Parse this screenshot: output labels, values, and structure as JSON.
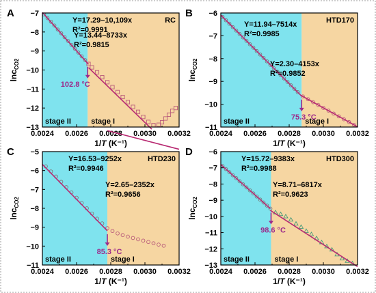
{
  "figure": {
    "colors": {
      "stage_ii_bg": "#7fe3ee",
      "stage_i_bg": "#f6d6a2",
      "fit_line": "#b82a72",
      "marker_stage_ii": "#7a7a7a",
      "marker_stage_i": "#b85a7a",
      "arrow": "#9c2a8a"
    }
  },
  "chart_data": [
    {
      "type": "scatter",
      "panel_letter": "A",
      "sample": "RC",
      "xlabel": "1/T (K⁻¹)",
      "ylabel": "lnc_CO2",
      "xlim": [
        0.0024,
        0.0032
      ],
      "ylim": [
        -13,
        -7
      ],
      "xticks": [
        "0.0024",
        "0.0026",
        "0.0028",
        "0.0030",
        "0.0032"
      ],
      "yticks": [
        "-13",
        "-12",
        "-11",
        "-10",
        "-9",
        "-8",
        "-7"
      ],
      "transition_x": 0.002665,
      "transition_temp": "102.8 °C",
      "stage_labels": [
        "stage II",
        "stage I"
      ],
      "fits": [
        {
          "equation": "Y=17.29–10,109x",
          "r2": "R²=0.9991",
          "intercept": 17.29,
          "slope": -10109,
          "x_range": [
            0.0024,
            0.00267
          ]
        },
        {
          "equation": "Y=13.44–8733x",
          "r2": "R²=0.9815",
          "intercept": 13.44,
          "slope": -8733,
          "x_range": [
            0.00267,
            0.00304
          ]
        }
      ],
      "points": [
        [
          0.00241,
          -7.08
        ],
        [
          0.00243,
          -7.27
        ],
        [
          0.00245,
          -7.46
        ],
        [
          0.00247,
          -7.66
        ],
        [
          0.00249,
          -7.87
        ],
        [
          0.00251,
          -8.07
        ],
        [
          0.00253,
          -8.27
        ],
        [
          0.00255,
          -8.47
        ],
        [
          0.00257,
          -8.68
        ],
        [
          0.00259,
          -8.88
        ],
        [
          0.00261,
          -9.08
        ],
        [
          0.00263,
          -9.28
        ],
        [
          0.00265,
          -9.48
        ],
        [
          0.00267,
          -9.68
        ],
        [
          0.00269,
          -9.86
        ],
        [
          0.00272,
          -10.12
        ],
        [
          0.00275,
          -10.38
        ],
        [
          0.00278,
          -10.64
        ],
        [
          0.00281,
          -10.9
        ],
        [
          0.00284,
          -11.16
        ],
        [
          0.00287,
          -11.42
        ],
        [
          0.0029,
          -11.69
        ],
        [
          0.00293,
          -11.94
        ],
        [
          0.00296,
          -12.2
        ],
        [
          0.00299,
          -12.47
        ],
        [
          0.00302,
          -12.73
        ],
        [
          0.00305,
          -12.9
        ],
        [
          0.00308,
          -12.88
        ],
        [
          0.0031,
          -12.75
        ],
        [
          0.00312,
          -12.55
        ],
        [
          0.00314,
          -12.35
        ],
        [
          0.00316,
          -12.15
        ],
        [
          0.00318,
          -12.0
        ]
      ]
    },
    {
      "type": "scatter",
      "panel_letter": "B",
      "sample": "HTD170",
      "xlabel": "1/T (K⁻¹)",
      "ylabel": "lnc_CO2",
      "xlim": [
        0.0024,
        0.0032
      ],
      "ylim": [
        -11,
        -6
      ],
      "xticks": [
        "0.0024",
        "0.0026",
        "0.0028",
        "0.0030",
        "0.0032"
      ],
      "yticks": [
        "-11",
        "-10",
        "-9",
        "-8",
        "-7",
        "-6"
      ],
      "transition_x": 0.002873,
      "transition_temp": "75.3 °C",
      "stage_labels": [
        "stage II",
        "stage I"
      ],
      "fits": [
        {
          "equation": "Y=11.94–7514x",
          "r2": "R²=0.9985",
          "intercept": 11.94,
          "slope": -7514,
          "x_range": [
            0.0024,
            0.00287
          ]
        },
        {
          "equation": "Y=2.30–4153x",
          "r2": "R²=0.9852",
          "intercept": 2.3,
          "slope": -4153,
          "x_range": [
            0.00287,
            0.0032
          ]
        }
      ],
      "points": [
        [
          0.00241,
          -6.17
        ],
        [
          0.00243,
          -6.32
        ],
        [
          0.00245,
          -6.47
        ],
        [
          0.00247,
          -6.62
        ],
        [
          0.00249,
          -6.77
        ],
        [
          0.00251,
          -6.92
        ],
        [
          0.00253,
          -7.07
        ],
        [
          0.00255,
          -7.22
        ],
        [
          0.00257,
          -7.37
        ],
        [
          0.00259,
          -7.52
        ],
        [
          0.00261,
          -7.67
        ],
        [
          0.00263,
          -7.82
        ],
        [
          0.00265,
          -7.97
        ],
        [
          0.00267,
          -8.12
        ],
        [
          0.00269,
          -8.27
        ],
        [
          0.00271,
          -8.42
        ],
        [
          0.00273,
          -8.57
        ],
        [
          0.00275,
          -8.72
        ],
        [
          0.00277,
          -8.87
        ],
        [
          0.00279,
          -9.02
        ],
        [
          0.00281,
          -9.17
        ],
        [
          0.00283,
          -9.32
        ],
        [
          0.00285,
          -9.47
        ],
        [
          0.00288,
          -9.66
        ],
        [
          0.00291,
          -9.78
        ],
        [
          0.00294,
          -9.91
        ],
        [
          0.00297,
          -10.03
        ],
        [
          0.003,
          -10.16
        ],
        [
          0.00303,
          -10.28
        ],
        [
          0.00306,
          -10.41
        ],
        [
          0.00309,
          -10.53
        ],
        [
          0.00312,
          -10.66
        ],
        [
          0.00315,
          -10.78
        ],
        [
          0.00318,
          -10.91
        ]
      ]
    },
    {
      "type": "scatter",
      "panel_letter": "C",
      "sample": "HTD230",
      "xlabel": "1/T (K⁻¹)",
      "ylabel": "lnc_CO2",
      "xlim": [
        0.0024,
        0.0032
      ],
      "ylim": [
        -11,
        -5
      ],
      "xticks": [
        "0.0024",
        "0.0026",
        "0.0028",
        "0.0030",
        "0.0032"
      ],
      "yticks": [
        "-11",
        "-10",
        "-9",
        "-8",
        "-7",
        "-6",
        "-5"
      ],
      "transition_x": 0.00278,
      "transition_temp": "85.3 °C",
      "stage_labels": [
        "stage II",
        "stage I"
      ],
      "fits": [
        {
          "equation": "Y=16.53–9252x",
          "r2": "R²=0.9946",
          "intercept": 16.53,
          "slope": -9252,
          "x_range": [
            0.0024,
            0.00278
          ]
        },
        {
          "equation": "Y=2.65–2352x",
          "r2": "R²=0.9656",
          "intercept": 2.65,
          "slope": -2352,
          "x_range": [
            0.00278,
            0.0032
          ]
        }
      ],
      "points": [
        [
          0.00242,
          -5.78
        ],
        [
          0.00245,
          -6.05
        ],
        [
          0.00248,
          -6.32
        ],
        [
          0.00251,
          -6.6
        ],
        [
          0.00254,
          -6.88
        ],
        [
          0.00257,
          -7.16
        ],
        [
          0.0026,
          -7.44
        ],
        [
          0.00263,
          -7.72
        ],
        [
          0.00266,
          -8.0
        ],
        [
          0.00269,
          -8.28
        ],
        [
          0.00272,
          -8.55
        ],
        [
          0.00275,
          -8.8
        ],
        [
          0.00278,
          -9.05
        ],
        [
          0.00281,
          -9.2
        ],
        [
          0.00284,
          -9.33
        ],
        [
          0.00287,
          -9.42
        ],
        [
          0.0029,
          -9.5
        ],
        [
          0.00293,
          -9.57
        ],
        [
          0.00296,
          -9.64
        ],
        [
          0.00299,
          -9.71
        ],
        [
          0.00302,
          -9.78
        ],
        [
          0.00305,
          -9.85
        ],
        [
          0.00308,
          -9.92
        ],
        [
          0.00311,
          -9.98
        ]
      ]
    },
    {
      "type": "scatter",
      "panel_letter": "D",
      "sample": "HTD300",
      "xlabel": "1/T (K⁻¹)",
      "ylabel": "lnc_CO2",
      "xlim": [
        0.0024,
        0.0032
      ],
      "ylim": [
        -13,
        -6
      ],
      "xticks": [
        "0.0024",
        "0.0026",
        "0.0028",
        "0.0030",
        "0.0032"
      ],
      "yticks": [
        "-13",
        "-12",
        "-11",
        "-10",
        "-9",
        "-8",
        "-7",
        "-6"
      ],
      "transition_x": 0.002694,
      "transition_temp": "98.6 °C",
      "stage_labels": [
        "stage II",
        "stage I"
      ],
      "fits": [
        {
          "equation": "Y=15.72–9383x",
          "r2": "R²=0.9988",
          "intercept": 15.72,
          "slope": -9383,
          "x_range": [
            0.0024,
            0.00269
          ]
        },
        {
          "equation": "Y=8.71–6817x",
          "r2": "R²=0.9623",
          "intercept": 8.71,
          "slope": -6817,
          "x_range": [
            0.00269,
            0.0032
          ]
        }
      ],
      "points": [
        [
          0.00241,
          -6.89
        ],
        [
          0.00243,
          -7.08
        ],
        [
          0.00245,
          -7.27
        ],
        [
          0.00247,
          -7.46
        ],
        [
          0.00249,
          -7.64
        ],
        [
          0.00251,
          -7.83
        ],
        [
          0.00253,
          -8.02
        ],
        [
          0.00255,
          -8.21
        ],
        [
          0.00257,
          -8.39
        ],
        [
          0.00259,
          -8.58
        ],
        [
          0.00261,
          -8.77
        ],
        [
          0.00263,
          -8.96
        ],
        [
          0.00265,
          -9.14
        ],
        [
          0.00267,
          -9.33
        ],
        [
          0.00269,
          -9.52
        ],
        [
          0.00272,
          -9.75
        ],
        [
          0.00275,
          -9.86
        ],
        [
          0.00278,
          -10.0
        ],
        [
          0.00281,
          -10.2
        ],
        [
          0.00284,
          -10.45
        ],
        [
          0.00287,
          -10.65
        ],
        [
          0.0029,
          -10.9
        ],
        [
          0.00293,
          -11.1
        ],
        [
          0.00296,
          -11.35
        ],
        [
          0.00299,
          -11.6
        ],
        [
          0.00302,
          -11.85
        ],
        [
          0.00305,
          -12.05
        ],
        [
          0.00308,
          -12.35
        ],
        [
          0.00311,
          -12.6
        ],
        [
          0.00314,
          -12.75
        ],
        [
          0.00317,
          -12.9
        ]
      ]
    }
  ]
}
